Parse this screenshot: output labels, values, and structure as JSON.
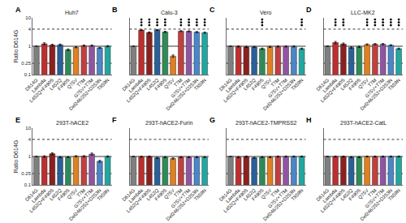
{
  "chart_data": [
    {
      "type": "bar",
      "title": "Huh7",
      "annotation": "A",
      "ylabel": "Ratio D614G",
      "categories": [
        "D614G",
        "Lambda",
        "L452Q+F490S",
        "L452Q",
        "F490S",
        "Q75V",
        "T7M",
        "G75V+T7M",
        "Del246/252+D253N",
        "T859N"
      ],
      "values": [
        1.0,
        1.22,
        1.1,
        1.12,
        0.75,
        0.92,
        1.05,
        1.05,
        0.88,
        1.0
      ],
      "errors": [
        0.0,
        0.1,
        0.07,
        0.07,
        0.05,
        0.04,
        0.05,
        0.05,
        0.04,
        0.05
      ],
      "significant": [
        false,
        false,
        false,
        false,
        false,
        false,
        false,
        false,
        false,
        false
      ],
      "colors": [
        "#7f7f7f",
        "#be2e2e",
        "#8b2020",
        "#2a6099",
        "#2e8b57",
        "#e08020",
        "#c04040",
        "#9055a2",
        "#4a86c8",
        "#20a8a0"
      ],
      "hlines": [
        {
          "value": 4,
          "line_style": "dotted"
        },
        {
          "value": 0.25,
          "line_style": "dotted"
        },
        {
          "value": 1,
          "line_style": "solid"
        }
      ],
      "log": "y",
      "ylim": [
        0.1,
        10
      ],
      "yticks": [
        0.1,
        0.25,
        1,
        4,
        10
      ],
      "grid": false
    },
    {
      "type": "bar",
      "title": "Calu-3",
      "annotation": "B",
      "categories": [
        "D614G",
        "Lambda",
        "L452Q+F490S",
        "L452Q",
        "F490S",
        "Q75V",
        "T7M",
        "G75V+T7M",
        "Del246/252+D253N",
        "T859N"
      ],
      "values": [
        1.0,
        3.7,
        3.05,
        3.75,
        3.2,
        0.45,
        3.4,
        3.35,
        3.15,
        3.0
      ],
      "errors": [
        0.0,
        0.12,
        0.15,
        0.1,
        0.15,
        0.04,
        0.12,
        0.12,
        0.15,
        0.15
      ],
      "significant": [
        false,
        true,
        true,
        true,
        true,
        false,
        true,
        true,
        true,
        true
      ],
      "colors": [
        "#7f7f7f",
        "#be2e2e",
        "#8b2020",
        "#2a6099",
        "#2e8b57",
        "#e08020",
        "#c04040",
        "#9055a2",
        "#4a86c8",
        "#20a8a0"
      ],
      "hlines": [
        {
          "value": 4,
          "line_style": "dotted"
        },
        {
          "value": 0.25,
          "line_style": "dotted"
        },
        {
          "value": 1,
          "line_style": "solid"
        }
      ],
      "log": "y",
      "ylim": [
        0.1,
        10
      ],
      "yticks": [
        0.1,
        0.25,
        1,
        4,
        10
      ],
      "grid": false,
      "tick_labels": "x"
    },
    {
      "type": "bar",
      "title": "Vero",
      "annotation": "C",
      "categories": [
        "D614G",
        "Lambda",
        "L452Q+F490S",
        "L452Q",
        "F490S",
        "Q75V",
        "T7M",
        "G75V+T7M",
        "Del246/252+D253N",
        "T859N"
      ],
      "values": [
        1.0,
        0.98,
        0.95,
        0.95,
        0.82,
        0.95,
        0.98,
        0.98,
        0.98,
        0.82
      ],
      "errors": [
        0.0,
        0.04,
        0.04,
        0.03,
        0.04,
        0.04,
        0.04,
        0.04,
        0.04,
        0.04
      ],
      "significant": [
        false,
        false,
        false,
        false,
        true,
        false,
        false,
        false,
        false,
        true
      ],
      "colors": [
        "#7f7f7f",
        "#be2e2e",
        "#8b2020",
        "#2a6099",
        "#2e8b57",
        "#e08020",
        "#c04040",
        "#9055a2",
        "#4a86c8",
        "#20a8a0"
      ],
      "hlines": [
        {
          "value": 4,
          "line_style": "dotted"
        },
        {
          "value": 0.25,
          "line_style": "dotted"
        },
        {
          "value": 1,
          "line_style": "solid"
        }
      ],
      "log": "y",
      "ylim": [
        0.1,
        10
      ],
      "yticks": [
        0.1,
        0.25,
        1,
        4,
        10
      ],
      "grid": false,
      "tick_labels": "x"
    },
    {
      "type": "bar",
      "title": "LLC-MK2",
      "annotation": "D",
      "categories": [
        "D614G",
        "Lambda",
        "L452Q+F490S",
        "L452Q",
        "F490S",
        "Q75V",
        "T7M",
        "G75V+T7M",
        "Del246/252+D253N",
        "T859N"
      ],
      "values": [
        1.0,
        1.35,
        1.2,
        0.9,
        0.95,
        1.15,
        1.18,
        1.18,
        1.08,
        0.82
      ],
      "errors": [
        0.0,
        0.12,
        0.1,
        0.05,
        0.05,
        0.06,
        0.06,
        0.06,
        0.05,
        0.04
      ],
      "significant": [
        false,
        true,
        true,
        false,
        false,
        true,
        true,
        true,
        true,
        true
      ],
      "colors": [
        "#7f7f7f",
        "#be2e2e",
        "#8b2020",
        "#2a6099",
        "#2e8b57",
        "#e08020",
        "#c04040",
        "#9055a2",
        "#4a86c8",
        "#20a8a0"
      ],
      "hlines": [
        {
          "value": 4,
          "line_style": "dotted"
        },
        {
          "value": 0.25,
          "line_style": "dotted"
        },
        {
          "value": 1,
          "line_style": "solid"
        }
      ],
      "log": "y",
      "ylim": [
        0.1,
        10
      ],
      "yticks": [
        0.1,
        0.25,
        1,
        4,
        10
      ],
      "grid": false,
      "tick_labels": "x"
    },
    {
      "type": "bar",
      "title": "293T-hACE2",
      "annotation": "E",
      "ylabel": "Ratio D614G",
      "categories": [
        "D614G",
        "Lambda",
        "L452Q+F490S",
        "L452Q",
        "F490S",
        "Q75V",
        "T7M",
        "G75V+T7M",
        "Del246/252+D253N",
        "T859N"
      ],
      "values": [
        1.0,
        1.0,
        1.25,
        0.95,
        0.95,
        1.02,
        1.02,
        1.22,
        0.68,
        1.0
      ],
      "errors": [
        0.0,
        0.06,
        0.1,
        0.04,
        0.04,
        0.05,
        0.05,
        0.1,
        0.05,
        0.05
      ],
      "significant": [
        false,
        false,
        false,
        false,
        false,
        false,
        false,
        false,
        false,
        false
      ],
      "colors": [
        "#7f7f7f",
        "#be2e2e",
        "#8b2020",
        "#2a6099",
        "#2e8b57",
        "#e08020",
        "#c04040",
        "#9055a2",
        "#4a86c8",
        "#20a8a0"
      ],
      "hlines": [
        {
          "value": 4,
          "line_style": "dotted"
        },
        {
          "value": 0.25,
          "line_style": "dotted"
        },
        {
          "value": 1,
          "line_style": "solid"
        }
      ],
      "log": "y",
      "ylim": [
        0.1,
        10
      ],
      "yticks": [
        0.1,
        0.25,
        1,
        4,
        10
      ],
      "grid": false
    },
    {
      "type": "bar",
      "title": "293T-hACE2-Furin",
      "annotation": "F",
      "categories": [
        "D614G",
        "Lambda",
        "L452Q+F490S",
        "L452Q",
        "F490S",
        "Q75V",
        "T7M",
        "G75V+T7M",
        "Del246/252+D253N",
        "T859N"
      ],
      "values": [
        1.0,
        0.98,
        1.0,
        0.9,
        0.95,
        0.85,
        0.95,
        0.95,
        0.95,
        0.95
      ],
      "errors": [
        0.0,
        0.04,
        0.04,
        0.04,
        0.04,
        0.04,
        0.04,
        0.04,
        0.04,
        0.04
      ],
      "significant": [
        false,
        false,
        false,
        false,
        false,
        false,
        false,
        false,
        false,
        false
      ],
      "colors": [
        "#7f7f7f",
        "#be2e2e",
        "#8b2020",
        "#2a6099",
        "#2e8b57",
        "#e08020",
        "#c04040",
        "#9055a2",
        "#4a86c8",
        "#20a8a0"
      ],
      "hlines": [
        {
          "value": 4,
          "line_style": "dotted"
        },
        {
          "value": 0.25,
          "line_style": "dotted"
        },
        {
          "value": 1,
          "line_style": "solid"
        }
      ],
      "log": "y",
      "ylim": [
        0.1,
        10
      ],
      "yticks": [
        0.1,
        0.25,
        1,
        4,
        10
      ],
      "grid": false,
      "tick_labels": "x"
    },
    {
      "type": "bar",
      "title": "293T-hACE2-TMPRSS2",
      "annotation": "G",
      "categories": [
        "D614G",
        "Lambda",
        "L452Q+F490S",
        "L452Q",
        "F490S",
        "Q75V",
        "T7M",
        "G75V+T7M",
        "Del246/252+D253N",
        "T859N"
      ],
      "values": [
        1.0,
        0.95,
        1.0,
        0.9,
        0.95,
        0.95,
        1.0,
        1.0,
        1.0,
        1.0
      ],
      "errors": [
        0.0,
        0.04,
        0.04,
        0.04,
        0.04,
        0.04,
        0.04,
        0.04,
        0.04,
        0.04
      ],
      "significant": [
        false,
        false,
        false,
        false,
        false,
        false,
        false,
        false,
        false,
        false
      ],
      "colors": [
        "#7f7f7f",
        "#be2e2e",
        "#8b2020",
        "#2a6099",
        "#2e8b57",
        "#e08020",
        "#c04040",
        "#9055a2",
        "#4a86c8",
        "#20a8a0"
      ],
      "hlines": [
        {
          "value": 4,
          "line_style": "dotted"
        },
        {
          "value": 0.25,
          "line_style": "dotted"
        },
        {
          "value": 1,
          "line_style": "solid"
        }
      ],
      "log": "y",
      "ylim": [
        0.1,
        10
      ],
      "yticks": [
        0.1,
        0.25,
        1,
        4,
        10
      ],
      "grid": false,
      "tick_labels": "x"
    },
    {
      "type": "bar",
      "title": "293T-hACE2-CatL",
      "annotation": "H",
      "categories": [
        "D614G",
        "Lambda",
        "L452Q+F490S",
        "L452Q",
        "F490S",
        "Q75V",
        "T7M",
        "G75V+T7M",
        "Del246/252+D253N",
        "T859N"
      ],
      "values": [
        1.0,
        1.0,
        1.0,
        0.95,
        0.95,
        1.0,
        1.0,
        1.0,
        1.0,
        1.0
      ],
      "errors": [
        0.0,
        0.04,
        0.04,
        0.04,
        0.04,
        0.04,
        0.04,
        0.04,
        0.04,
        0.04
      ],
      "significant": [
        false,
        false,
        false,
        false,
        false,
        false,
        false,
        false,
        false,
        false
      ],
      "colors": [
        "#7f7f7f",
        "#be2e2e",
        "#8b2020",
        "#2a6099",
        "#2e8b57",
        "#e08020",
        "#c04040",
        "#9055a2",
        "#4a86c8",
        "#20a8a0"
      ],
      "hlines": [
        {
          "value": 4,
          "line_style": "dotted"
        },
        {
          "value": 0.25,
          "line_style": "dotted"
        },
        {
          "value": 1,
          "line_style": "solid"
        }
      ],
      "log": "y",
      "ylim": [
        0.1,
        10
      ],
      "yticks": [
        0.1,
        0.25,
        1,
        4,
        10
      ],
      "grid": false,
      "tick_labels": "x"
    }
  ]
}
